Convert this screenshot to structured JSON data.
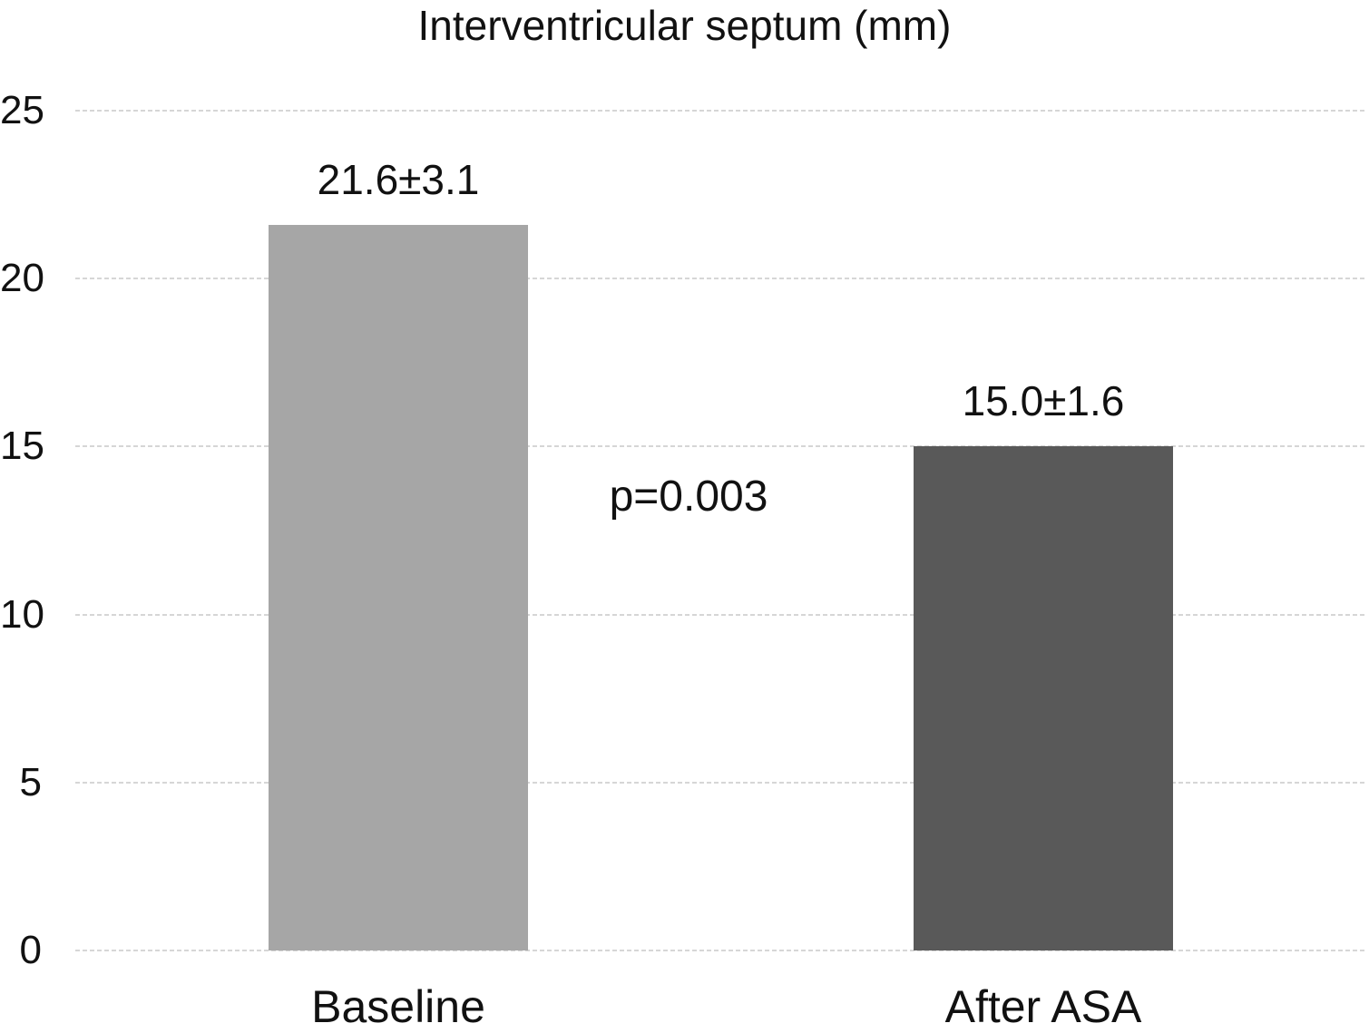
{
  "chart_data": {
    "type": "bar",
    "title": "Interventricular septum (mm)",
    "categories": [
      "Baseline",
      "After ASA"
    ],
    "values": [
      21.6,
      15.0
    ],
    "bar_labels": [
      "21.6±3.1",
      "15.0±1.6"
    ],
    "bar_colors": [
      "#a6a6a6",
      "#595959"
    ],
    "annotation": "p=0.003",
    "xlabel": "",
    "ylabel": "",
    "ylim": [
      0,
      25
    ],
    "yticks": [
      0,
      5,
      10,
      15,
      20,
      25
    ],
    "grid": true,
    "gridline_color": "#d6d6d6",
    "gridline_style": "dashed",
    "legend_position": "none",
    "background_color": "#ffffff",
    "text_color": "#111111"
  }
}
